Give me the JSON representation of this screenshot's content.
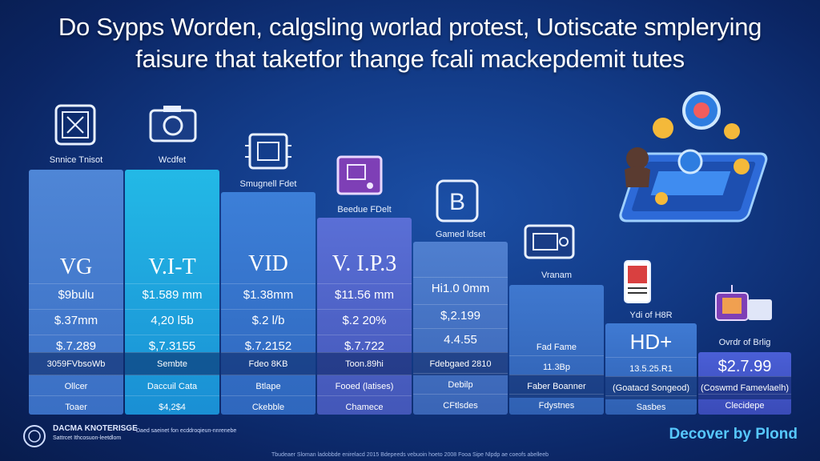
{
  "headline": {
    "line1": "Do Sypps Worden, calgsling worlad protest, Uotiscate smplerying",
    "line2": "faisure that taketfor thange fcali mackepdemit tutes"
  },
  "columns": [
    {
      "label": "Snnice Tnisot",
      "name": "VG",
      "cells": [
        "$9bulu",
        "$.37mm",
        "$.7.289",
        "3059FVbsoWb",
        "Ollcer",
        "Toaer"
      ]
    },
    {
      "label": "Wcdfet",
      "name": "V.I-T",
      "cells": [
        "$1.589 mm",
        "4,20 l5b",
        "$,7.3155",
        "Sembte",
        "Daccuil Cata",
        "$4,2$4"
      ]
    },
    {
      "label": "Smugnell Fdet",
      "name": "VID",
      "cells": [
        "$1.38mm",
        "$.2 l/b",
        "$.7.2152",
        "Fdeo 8KB",
        "Btlape",
        "Ckebble"
      ]
    },
    {
      "label": "Beedue FDelt",
      "name": "V. I.P.3",
      "cells": [
        "$11.56 mm",
        "$.2 20%",
        "$.7.722",
        "Toon.89hi",
        "Fooed (latises)",
        "Chamece"
      ]
    },
    {
      "label": "Gamed ldset",
      "name": "",
      "cells": [
        "Hi1.0 0mm",
        "$,2.199",
        "4.4.55",
        "Fdebgaed 2810",
        "Debilp",
        "CFtlsdes"
      ]
    },
    {
      "label": "Vranam",
      "name": "",
      "cells": [
        "Fad Fame",
        "11.3Bp",
        "Faber Boanner",
        "Fdystnes"
      ]
    },
    {
      "label": "Ydi of H8R",
      "name": "HD+",
      "cells": [
        "13.5.25.R1",
        "(Goatacd Songeod)",
        "Sasbes"
      ]
    },
    {
      "label": "Ovrdr of Brlig",
      "name": "",
      "cells": [
        "$2.7.99",
        "(Coswmd Famevlaelh)",
        "Clecidepe"
      ]
    }
  ],
  "footer": {
    "left_line1": "DACMA KNOTERISGE",
    "left_line2": "Sattrcet Ithcosuon-leetdlom",
    "left_line3": "Daed saeinet fon ecddroqieun-nnrenebe",
    "brand": "Decover by Plond",
    "tiny": "Tbudeaer Sloman ladobbde enirelacd  2015  Bdepeeds vebuoin hoeto  2008  Fooa Sipe Nlpdp ae coeofs abelleeb"
  },
  "icons": [
    "film-icon",
    "camera-icon",
    "circuit-icon",
    "monitor-icon",
    "device-b-icon",
    "projector-icon",
    "phone-icon",
    "tv-icon",
    "smartphone-illustration"
  ]
}
